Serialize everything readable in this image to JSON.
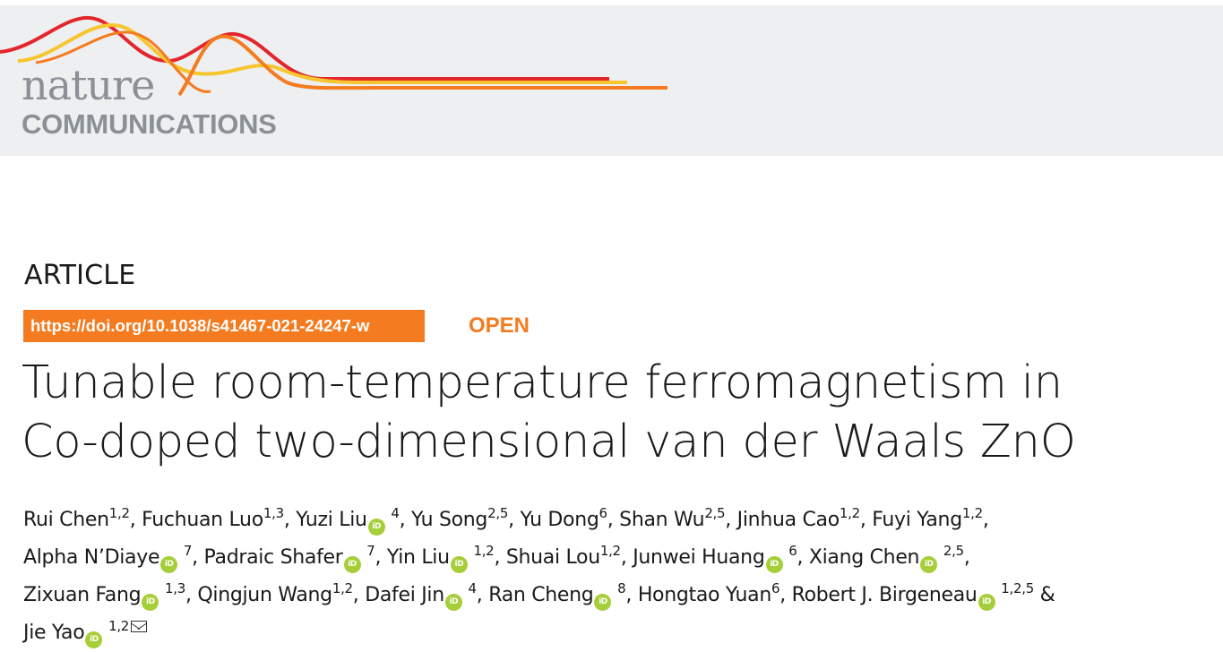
{
  "journal": {
    "logo_top": "nature",
    "logo_bottom": "COMMUNICATIONS",
    "colors": {
      "banner_bg": "#edeff1",
      "logo_grey": "#8a9096",
      "wave_red": "#e3262b",
      "wave_orange": "#f47b20",
      "wave_yellow": "#f7c52d"
    }
  },
  "article": {
    "type": "ARTICLE",
    "doi": "https://doi.org/10.1038/s41467-021-24247-w",
    "open_label": "OPEN",
    "accent_color": "#f47b20",
    "title_line1": "Tunable room-temperature ferromagnetism in",
    "title_line2": "Co-doped two-dimensional van der Waals ZnO"
  },
  "authors": [
    {
      "name": "Rui Chen",
      "aff": "1,2",
      "orcid": false,
      "sep": ", "
    },
    {
      "name": "Fuchuan Luo",
      "aff": "1,3",
      "orcid": false,
      "sep": ", "
    },
    {
      "name": "Yuzi Liu",
      "aff": "4",
      "orcid": true,
      "sep": ", "
    },
    {
      "name": "Yu Song",
      "aff": "2,5",
      "orcid": false,
      "sep": ", "
    },
    {
      "name": "Yu Dong",
      "aff": "6",
      "orcid": false,
      "sep": ", "
    },
    {
      "name": "Shan Wu",
      "aff": "2,5",
      "orcid": false,
      "sep": ", "
    },
    {
      "name": "Jinhua Cao",
      "aff": "1,2",
      "orcid": false,
      "sep": ", "
    },
    {
      "name": "Fuyi Yang",
      "aff": "1,2",
      "orcid": false,
      "sep": ","
    },
    {
      "name": "Alpha N’Diaye",
      "aff": "7",
      "orcid": true,
      "sep": ", "
    },
    {
      "name": "Padraic Shafer",
      "aff": "7",
      "orcid": true,
      "sep": ", "
    },
    {
      "name": "Yin Liu",
      "aff": "1,2",
      "orcid": true,
      "sep": ", "
    },
    {
      "name": "Shuai Lou",
      "aff": "1,2",
      "orcid": false,
      "sep": ", "
    },
    {
      "name": "Junwei Huang",
      "aff": "6",
      "orcid": true,
      "sep": ", "
    },
    {
      "name": "Xiang Chen",
      "aff": "2,5",
      "orcid": true,
      "sep": ","
    },
    {
      "name": "Zixuan Fang",
      "aff": "1,3",
      "orcid": true,
      "sep": ", "
    },
    {
      "name": "Qingjun Wang",
      "aff": "1,2",
      "orcid": false,
      "sep": ", "
    },
    {
      "name": "Dafei Jin",
      "aff": "4",
      "orcid": true,
      "sep": ", "
    },
    {
      "name": "Ran Cheng",
      "aff": "8",
      "orcid": true,
      "sep": ", "
    },
    {
      "name": "Hongtao Yuan",
      "aff": "6",
      "orcid": false,
      "sep": ", "
    },
    {
      "name": "Robert J. Birgeneau",
      "aff": "1,2,5",
      "orcid": true,
      "sep": " &"
    },
    {
      "name": "Jie Yao",
      "aff": "1,2",
      "orcid": true,
      "sep": "",
      "corresponding": true
    }
  ],
  "author_lines": [
    [
      0,
      1,
      2,
      3,
      4,
      5,
      6,
      7
    ],
    [
      8,
      9,
      10,
      11,
      12,
      13
    ],
    [
      14,
      15,
      16,
      17,
      18,
      19
    ],
    [
      20
    ]
  ],
  "orcid_icon": {
    "name": "orcid-icon",
    "glyph": "iD",
    "color": "#a6ce39"
  },
  "mail_icon": "mail-icon"
}
